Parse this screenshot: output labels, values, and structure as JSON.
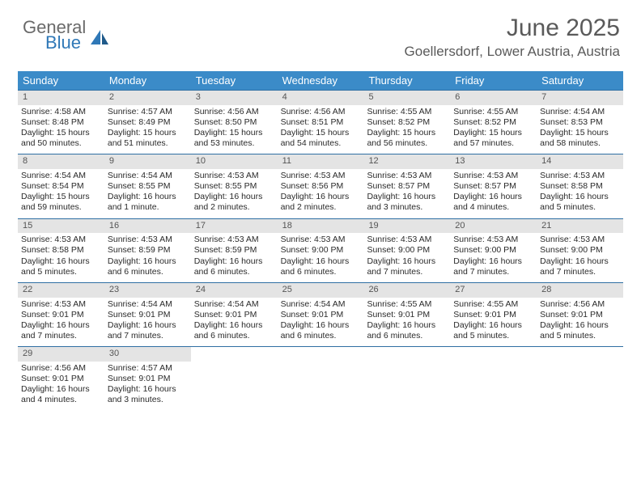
{
  "logo": {
    "word1": "General",
    "word2": "Blue"
  },
  "title": "June 2025",
  "location": "Goellersdorf, Lower Austria, Austria",
  "colors": {
    "header_bg": "#3b8bc8",
    "header_text": "#ffffff",
    "daynum_bg": "#e4e4e4",
    "rule": "#2f6fa3",
    "logo_gray": "#6a6a6a",
    "logo_blue": "#2f78b7"
  },
  "day_headers": [
    "Sunday",
    "Monday",
    "Tuesday",
    "Wednesday",
    "Thursday",
    "Friday",
    "Saturday"
  ],
  "weeks": [
    [
      {
        "n": "1",
        "sr": "4:58 AM",
        "ss": "8:48 PM",
        "dl": "15 hours and 50 minutes."
      },
      {
        "n": "2",
        "sr": "4:57 AM",
        "ss": "8:49 PM",
        "dl": "15 hours and 51 minutes."
      },
      {
        "n": "3",
        "sr": "4:56 AM",
        "ss": "8:50 PM",
        "dl": "15 hours and 53 minutes."
      },
      {
        "n": "4",
        "sr": "4:56 AM",
        "ss": "8:51 PM",
        "dl": "15 hours and 54 minutes."
      },
      {
        "n": "5",
        "sr": "4:55 AM",
        "ss": "8:52 PM",
        "dl": "15 hours and 56 minutes."
      },
      {
        "n": "6",
        "sr": "4:55 AM",
        "ss": "8:52 PM",
        "dl": "15 hours and 57 minutes."
      },
      {
        "n": "7",
        "sr": "4:54 AM",
        "ss": "8:53 PM",
        "dl": "15 hours and 58 minutes."
      }
    ],
    [
      {
        "n": "8",
        "sr": "4:54 AM",
        "ss": "8:54 PM",
        "dl": "15 hours and 59 minutes."
      },
      {
        "n": "9",
        "sr": "4:54 AM",
        "ss": "8:55 PM",
        "dl": "16 hours and 1 minute."
      },
      {
        "n": "10",
        "sr": "4:53 AM",
        "ss": "8:55 PM",
        "dl": "16 hours and 2 minutes."
      },
      {
        "n": "11",
        "sr": "4:53 AM",
        "ss": "8:56 PM",
        "dl": "16 hours and 2 minutes."
      },
      {
        "n": "12",
        "sr": "4:53 AM",
        "ss": "8:57 PM",
        "dl": "16 hours and 3 minutes."
      },
      {
        "n": "13",
        "sr": "4:53 AM",
        "ss": "8:57 PM",
        "dl": "16 hours and 4 minutes."
      },
      {
        "n": "14",
        "sr": "4:53 AM",
        "ss": "8:58 PM",
        "dl": "16 hours and 5 minutes."
      }
    ],
    [
      {
        "n": "15",
        "sr": "4:53 AM",
        "ss": "8:58 PM",
        "dl": "16 hours and 5 minutes."
      },
      {
        "n": "16",
        "sr": "4:53 AM",
        "ss": "8:59 PM",
        "dl": "16 hours and 6 minutes."
      },
      {
        "n": "17",
        "sr": "4:53 AM",
        "ss": "8:59 PM",
        "dl": "16 hours and 6 minutes."
      },
      {
        "n": "18",
        "sr": "4:53 AM",
        "ss": "9:00 PM",
        "dl": "16 hours and 6 minutes."
      },
      {
        "n": "19",
        "sr": "4:53 AM",
        "ss": "9:00 PM",
        "dl": "16 hours and 7 minutes."
      },
      {
        "n": "20",
        "sr": "4:53 AM",
        "ss": "9:00 PM",
        "dl": "16 hours and 7 minutes."
      },
      {
        "n": "21",
        "sr": "4:53 AM",
        "ss": "9:00 PM",
        "dl": "16 hours and 7 minutes."
      }
    ],
    [
      {
        "n": "22",
        "sr": "4:53 AM",
        "ss": "9:01 PM",
        "dl": "16 hours and 7 minutes."
      },
      {
        "n": "23",
        "sr": "4:54 AM",
        "ss": "9:01 PM",
        "dl": "16 hours and 7 minutes."
      },
      {
        "n": "24",
        "sr": "4:54 AM",
        "ss": "9:01 PM",
        "dl": "16 hours and 6 minutes."
      },
      {
        "n": "25",
        "sr": "4:54 AM",
        "ss": "9:01 PM",
        "dl": "16 hours and 6 minutes."
      },
      {
        "n": "26",
        "sr": "4:55 AM",
        "ss": "9:01 PM",
        "dl": "16 hours and 6 minutes."
      },
      {
        "n": "27",
        "sr": "4:55 AM",
        "ss": "9:01 PM",
        "dl": "16 hours and 5 minutes."
      },
      {
        "n": "28",
        "sr": "4:56 AM",
        "ss": "9:01 PM",
        "dl": "16 hours and 5 minutes."
      }
    ],
    [
      {
        "n": "29",
        "sr": "4:56 AM",
        "ss": "9:01 PM",
        "dl": "16 hours and 4 minutes."
      },
      {
        "n": "30",
        "sr": "4:57 AM",
        "ss": "9:01 PM",
        "dl": "16 hours and 3 minutes."
      },
      {
        "empty": true
      },
      {
        "empty": true
      },
      {
        "empty": true
      },
      {
        "empty": true
      },
      {
        "empty": true
      }
    ]
  ],
  "labels": {
    "sunrise": "Sunrise:",
    "sunset": "Sunset:",
    "daylight": "Daylight:"
  }
}
